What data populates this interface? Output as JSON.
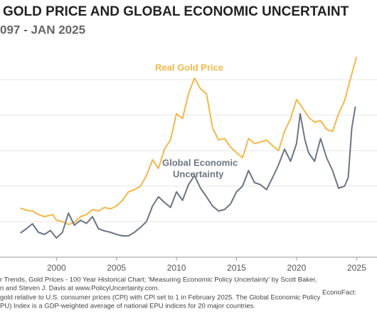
{
  "chart_data": {
    "type": "line",
    "title": "GOLD PRICE AND GLOBAL ECONOMIC UNCERTAINT",
    "subtitle": "097 - JAN 2025",
    "xlim": [
      1995.3,
      2026.7
    ],
    "xticks": [
      2000,
      2005,
      2010,
      2015,
      2020,
      2025
    ],
    "ylim": [
      0,
      6
    ],
    "yticks": [
      0,
      1,
      2,
      3,
      4,
      5
    ],
    "grid": true,
    "series": [
      {
        "color": "#f2b84b",
        "x": [
          1997,
          1997.5,
          1998,
          1998.5,
          1999,
          1999.7,
          2000,
          2000.5,
          2001,
          2001.5,
          2002,
          2002.5,
          2003,
          2003.5,
          2004,
          2004.5,
          2005,
          2005.5,
          2006,
          2006.5,
          2007,
          2007.5,
          2008,
          2008.5,
          2009,
          2009.5,
          2010,
          2010.5,
          2011,
          2011.5,
          2012,
          2012.5,
          2013,
          2013.5,
          2014,
          2014.5,
          2015,
          2015.5,
          2016,
          2016.5,
          2017,
          2017.5,
          2018,
          2018.5,
          2019,
          2019.5,
          2020,
          2020.5,
          2021,
          2021.5,
          2022,
          2022.5,
          2023,
          2023.5,
          2024,
          2024.5,
          2025
        ],
        "values": [
          1.38,
          1.32,
          1.3,
          1.2,
          1.14,
          1.2,
          1.04,
          1.0,
          0.92,
          0.98,
          1.14,
          1.2,
          1.34,
          1.3,
          1.4,
          1.36,
          1.44,
          1.6,
          1.84,
          1.9,
          2.0,
          2.3,
          2.74,
          2.5,
          3.04,
          3.3,
          4.04,
          3.9,
          4.6,
          5.04,
          4.74,
          4.6,
          3.64,
          3.3,
          3.34,
          3.1,
          2.94,
          2.8,
          3.34,
          3.2,
          3.24,
          3.3,
          3.14,
          3.0,
          3.54,
          3.9,
          4.44,
          4.2,
          3.94,
          3.8,
          3.84,
          3.6,
          3.54,
          4.04,
          4.4,
          5.04,
          5.64
        ]
      },
      {
        "color": "#6c7585",
        "x": [
          1997,
          1997.5,
          1998,
          1998.5,
          1999,
          1999.5,
          2000,
          2000.5,
          2001,
          2001.5,
          2002,
          2002.5,
          2003,
          2003.5,
          2004,
          2004.5,
          2005,
          2005.5,
          2006,
          2006.5,
          2007,
          2007.5,
          2008,
          2008.5,
          2009,
          2009.5,
          2010,
          2010.5,
          2011,
          2011.5,
          2012,
          2012.5,
          2013,
          2013.5,
          2014,
          2014.5,
          2015,
          2015.5,
          2016,
          2016.5,
          2017,
          2017.5,
          2018,
          2018.5,
          2019,
          2019.5,
          2020,
          2020.3,
          2020.7,
          2021,
          2021.5,
          2022,
          2022.5,
          2023,
          2023.5,
          2024,
          2024.3,
          2024.6,
          2024.9
        ],
        "values": [
          0.68,
          0.8,
          0.94,
          0.7,
          0.64,
          0.75,
          0.54,
          0.7,
          1.24,
          0.9,
          1.04,
          0.95,
          1.14,
          0.8,
          0.74,
          0.7,
          0.64,
          0.6,
          0.6,
          0.7,
          0.84,
          1.0,
          1.44,
          1.7,
          1.54,
          1.4,
          1.84,
          1.6,
          2.04,
          2.3,
          1.94,
          1.7,
          1.44,
          1.3,
          1.34,
          1.5,
          1.84,
          2.0,
          2.44,
          2.1,
          2.04,
          1.9,
          2.24,
          2.6,
          3.04,
          2.7,
          3.2,
          4.04,
          3.3,
          2.94,
          2.7,
          3.34,
          2.8,
          2.44,
          1.94,
          2.0,
          2.24,
          3.64,
          4.24
        ]
      }
    ],
    "annotations": [
      "Real Gold Price",
      "Global Economic",
      "Uncertainty"
    ],
    "notes": [
      "r Trends, Gold Prices - 100 Year Historical Chart; 'Measuring Economic Policy Uncertainty' by Scott Baker,",
      "n and Steven J. Davis at www.PolicyUncertainty.com.",
      "gold relative to U.S. consumer prices (CPI) with CPI set to 1 in February 2025. The Global Economic Policy",
      "PU) Index is a GDP-weighted average of national EPU indices for 20 major countries."
    ],
    "credit": "EconoFact:"
  }
}
